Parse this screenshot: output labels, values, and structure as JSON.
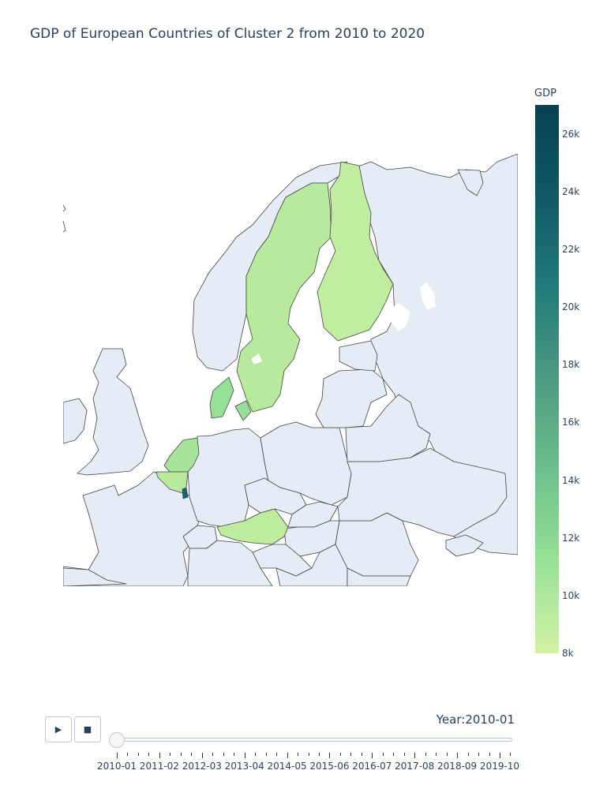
{
  "chart_data": {
    "type": "choropleth",
    "title": "GDP of European Countries of Cluster 2 from 2010 to 2020",
    "colorbar": {
      "title": "GDP",
      "min": 8000,
      "max": 27000,
      "ticks": [
        "8k",
        "10k",
        "12k",
        "14k",
        "16k",
        "18k",
        "20k",
        "22k",
        "24k",
        "26k"
      ],
      "tick_values": [
        8000,
        10000,
        12000,
        14000,
        16000,
        18000,
        20000,
        22000,
        24000,
        26000
      ],
      "colors": [
        "#d3f2a3",
        "#97e196",
        "#6cc08b",
        "#4c9b82",
        "#217a79",
        "#105965",
        "#074050"
      ]
    },
    "regions": [
      {
        "id": "sweden",
        "value": 9500
      },
      {
        "id": "finland",
        "value": 9000
      },
      {
        "id": "denmark",
        "value": 11300
      },
      {
        "id": "netherlands",
        "value": 10400
      },
      {
        "id": "belgium",
        "value": 9400
      },
      {
        "id": "luxembourg",
        "value": 22600
      },
      {
        "id": "austria",
        "value": 9100
      }
    ],
    "animation": {
      "current_label": "Year:2010-01",
      "current_index": 0,
      "slider_labels": [
        "2010-01",
        "2011-02",
        "2012-03",
        "2013-04",
        "2014-05",
        "2015-06",
        "2016-07",
        "2017-08",
        "2018-09",
        "2019-10"
      ]
    }
  },
  "controls": {
    "play_icon": "▶",
    "stop_icon": "■"
  },
  "colors": {
    "land": "#e5ecf6",
    "border": "#444444",
    "text": "#2a3f5f"
  }
}
